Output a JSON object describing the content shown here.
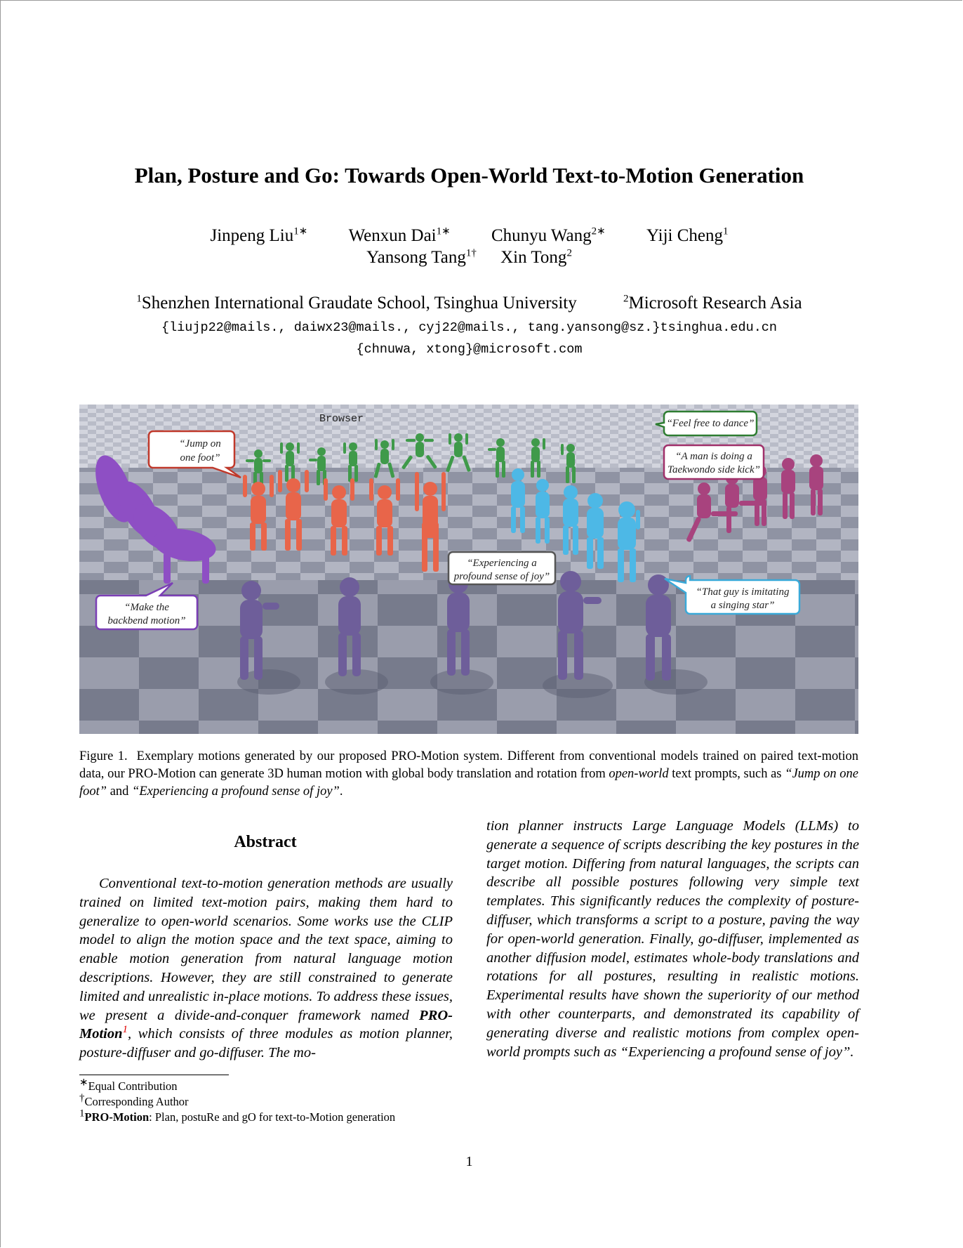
{
  "title": "Plan, Posture and Go: Towards Open-World Text-to-Motion Generation",
  "authors": [
    {
      "name": "Jinpeng Liu",
      "sup": "1∗"
    },
    {
      "name": "Wenxun Dai",
      "sup": "1∗"
    },
    {
      "name": "Chunyu Wang",
      "sup": "2∗"
    },
    {
      "name": "Yiji Cheng",
      "sup": "1"
    },
    {
      "name": "Yansong Tang",
      "sup": "1†"
    },
    {
      "name": "Xin Tong",
      "sup": "2"
    }
  ],
  "affiliations": [
    {
      "sup": "1",
      "name": "Shenzhen International Graudate School, Tsinghua University"
    },
    {
      "sup": "2",
      "name": "Microsoft Research Asia"
    }
  ],
  "emails": [
    "{liujp22@mails., daiwx23@mails., cyj22@mails., tang.yansong@sz.}tsinghua.edu.cn",
    "{chnuwa, xtong}@microsoft.com"
  ],
  "figure": {
    "browser_label": "Browser",
    "speech_bubbles": [
      {
        "lines": [
          "“Jump on",
          "one foot”"
        ],
        "color": "#c0392b"
      },
      {
        "lines": [
          "“Feel free to dance”"
        ],
        "color": "#2e7d32"
      },
      {
        "lines": [
          "“A man is doing a",
          "Taekwondo side kick”"
        ],
        "color": "#a0306a"
      },
      {
        "lines": [
          "“Experiencing a",
          "profound sense of joy”"
        ],
        "color": "#555555"
      },
      {
        "lines": [
          "“That guy is imitating",
          "a singing star”"
        ],
        "color": "#3aa9d8"
      },
      {
        "lines": [
          "“Make the",
          "backbend motion”"
        ],
        "color": "#7b3fb5"
      }
    ],
    "figure_colors": {
      "green": "#3f9a4a",
      "orange": "#e8654a",
      "purple": "#8e4fc4",
      "blue": "#4db8e6",
      "magenta": "#a8437e",
      "violet": "#6e5e9a"
    }
  },
  "caption": {
    "label": "Figure 1.",
    "text_1": "Exemplary motions generated by our proposed PRO-Motion system. Different from conventional models trained on paired text-motion data, our PRO-Motion can generate 3D human motion with global body translation and rotation from ",
    "em_1": "open-world",
    "text_2": " text prompts, such as ",
    "em_2": "“Jump on one foot”",
    "text_3": " and ",
    "em_3": "“Experiencing a profound sense of joy”",
    "text_4": "."
  },
  "abstract": {
    "heading": "Abstract",
    "left_1": "Conventional text-to-motion generation methods are usually trained on limited text-motion pairs, making them hard to generalize to open-world scenarios. Some works use the CLIP model to align the motion space and the text space, aiming to enable motion generation from natural language motion descriptions. However, they are still constrained to generate limited and unrealistic in-place motions. To address these issues, we present a divide-and-conquer framework named ",
    "name_bold": "PRO-Motion",
    "fn_mark": "1",
    "left_2": ", which consists of three modules as motion planner, posture-diffuser and go-diffuser. The mo-",
    "right": "tion planner instructs Large Language Models (LLMs) to generate a sequence of scripts describing the key postures in the target motion. Differing from natural languages, the scripts can describe all possible postures following very simple text templates. This significantly reduces the complexity of posture-diffuser, which transforms a script to a posture, paving the way for open-world generation. Finally, go-diffuser, implemented as another diffusion model, estimates whole-body translations and rotations for all postures, resulting in realistic motions. Experimental results have shown the superiority of our method with other counterparts, and demonstrated its capability of generating diverse and realistic motions from complex open-world prompts such as “Experiencing a profound sense of joy”."
  },
  "footnotes": {
    "fn1_mark": "∗",
    "fn1_text": "Equal Contribution",
    "fn2_mark": "†",
    "fn2_text": "Corresponding Author",
    "fn3_mark": "1",
    "fn3_bold": "PRO-Motion",
    "fn3_rest": ": Plan, postuRe and gO for text-to-Motion generation"
  },
  "page_number": "1"
}
